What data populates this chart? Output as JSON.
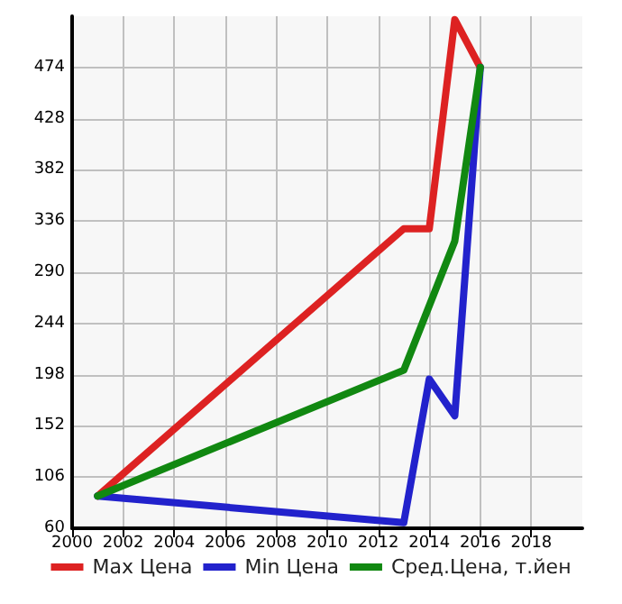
{
  "chart_data": {
    "type": "line",
    "x": [
      2001,
      2013,
      2014,
      2015,
      2016
    ],
    "series": [
      {
        "name": "Max Цена",
        "color": "#dd2222",
        "values": [
          89,
          329,
          329,
          517,
          474
        ]
      },
      {
        "name": "Min Цена",
        "color": "#2222cc",
        "values": [
          89,
          65,
          194,
          161,
          474
        ]
      },
      {
        "name": "Сред.Цена, т.йен",
        "color": "#118811",
        "x": [
          2001,
          2013,
          2015,
          2016
        ],
        "values": [
          89,
          202,
          318,
          474
        ]
      }
    ],
    "xlim": [
      2000,
      2020
    ],
    "xticks": [
      2000,
      2002,
      2004,
      2006,
      2008,
      2010,
      2012,
      2014,
      2016,
      2018
    ],
    "ylim": [
      60,
      520
    ],
    "yticks": [
      60,
      106,
      152,
      198,
      244,
      290,
      336,
      382,
      428,
      474
    ],
    "grid": true,
    "legend": "bottom",
    "marker": "none",
    "line_style": "solid"
  }
}
